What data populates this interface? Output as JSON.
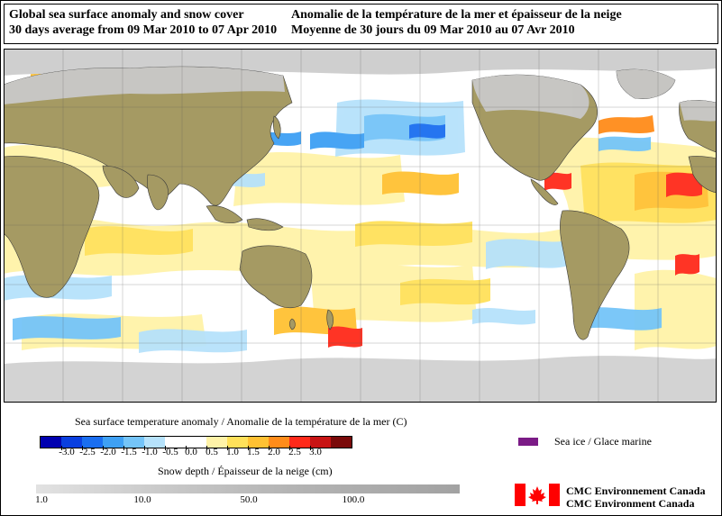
{
  "title": {
    "en_line1": "Global sea surface anomaly and snow cover",
    "en_line2": "30 days average from 09 Mar 2010 to 07 Apr 2010",
    "fr_line1": "Anomalie de la température de la mer et épaisseur de la neige",
    "fr_line2": "Moyenne de 30 jours du 09 Mar 2010 au 07 Avr 2010"
  },
  "legend": {
    "sst_title": "Sea surface temperature anomaly / Anomalie de la température de la mer (C)",
    "sst_colors": [
      "#0000b0",
      "#0a3fe0",
      "#1a6ef0",
      "#3ea0f4",
      "#74c4f8",
      "#b6e2fb",
      "#ffffff",
      "#ffffff",
      "#fff3a8",
      "#ffe15a",
      "#ffc133",
      "#ff8c1a",
      "#ff2a1a",
      "#c81414",
      "#7a0a0a"
    ],
    "sst_ticks": [
      "-3.0",
      "-2.5",
      "-2.0",
      "-1.5",
      "-1.0",
      "-0.5",
      "0.0",
      "0.5",
      "1.0",
      "1.5",
      "2.0",
      "2.5",
      "3.0"
    ],
    "seaice_label": "Sea ice / Glace marine",
    "seaice_color": "#7b1b86",
    "snow_title": "Snow depth / Épaisseur de la neige (cm)",
    "snow_ticks": [
      "1.0",
      "10.0",
      "50.0",
      "100.0"
    ],
    "org_line1": "CMC  Environnement  Canada",
    "org_line2": "CMC  Environment  Canada"
  },
  "colors": {
    "land": "#a59a63",
    "snow": "#c8c8c8",
    "ocean_neutral": "#ffffff",
    "flag_red": "#ff0000"
  }
}
